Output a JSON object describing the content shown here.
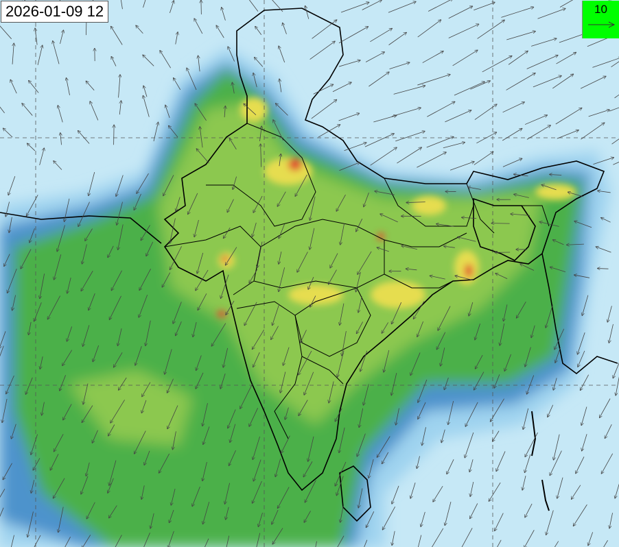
{
  "timestamp": "2026-01-09 12",
  "wind_legend": {
    "reference_speed": "10",
    "icon": "arrow-right-icon"
  },
  "colors": {
    "ocean_background": "#c6e8f6",
    "low_shade_1": "#9fd3ef",
    "low_shade_2": "#6fb0dd",
    "low_shade_3": "#4e93cc",
    "mid": "#4cb04a",
    "mid_light": "#8cc850",
    "high": "#e6dd50",
    "very_high": "#e05030",
    "legend_bg": "#00ff00",
    "border": "#000000"
  }
}
